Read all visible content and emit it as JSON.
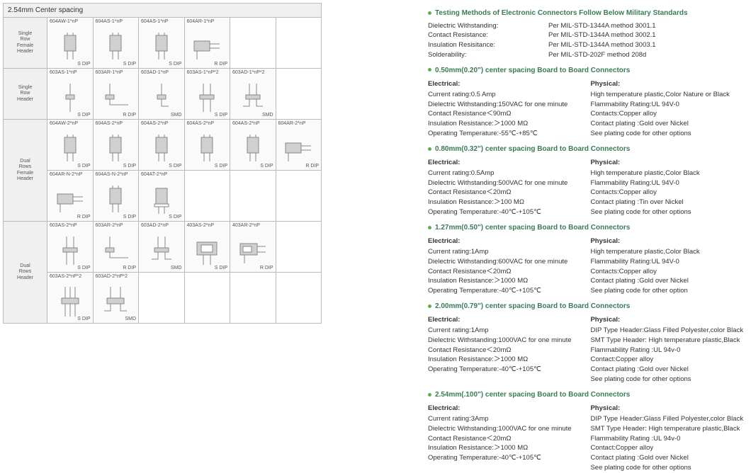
{
  "table": {
    "title": "2.54mm Center spacing",
    "rows": [
      {
        "label": "Single Row Female Header",
        "cells": [
          {
            "part": "604AW-1*nP",
            "pkg": "S DIP",
            "d": "fh"
          },
          {
            "part": "604AS-1*nP",
            "pkg": "S DIP",
            "d": "fh"
          },
          {
            "part": "604AS-1*nP",
            "pkg": "S DIP",
            "d": "fh"
          },
          {
            "part": "604AR-1*nP",
            "pkg": "R DIP",
            "d": "fhr"
          },
          {
            "empty": true
          },
          {
            "empty": true
          }
        ]
      },
      {
        "label": "Single Row Header",
        "cells": [
          {
            "part": "603AS-1*nP",
            "pkg": "S DIP",
            "d": "pin"
          },
          {
            "part": "603AR-1*nP",
            "pkg": "R DIP",
            "d": "pinr"
          },
          {
            "part": "603AD-1*nP",
            "pkg": "SMD",
            "d": "smt"
          },
          {
            "part": "603AS-1*nP*2",
            "pkg": "S DIP",
            "d": "pin2"
          },
          {
            "part": "603AD-1*nP*2",
            "pkg": "SMD",
            "d": "smt2"
          },
          {
            "empty": true
          }
        ]
      },
      {
        "label": "Dual Rows Female Header",
        "cells": [
          {
            "part": "604AW-2*nP",
            "pkg": "S DIP",
            "d": "fh"
          },
          {
            "part": "604AS-2*nP",
            "pkg": "S DIP",
            "d": "fh"
          },
          {
            "part": "604AS-2*nP",
            "pkg": "S DIP",
            "d": "fh"
          },
          {
            "part": "604AS-2*nP",
            "pkg": "S DIP",
            "d": "fh"
          },
          {
            "part": "604AS-2*nP",
            "pkg": "S DIP",
            "d": "fh"
          },
          {
            "part": "604AR-2*nP",
            "pkg": "R DIP",
            "d": "fhr"
          }
        ]
      },
      {
        "label": "",
        "cells": [
          {
            "part": "604AR-N-2*nP",
            "pkg": "R DIP",
            "d": "fhr"
          },
          {
            "part": "604AS-N-2*nP",
            "pkg": "S DIP",
            "d": "fh"
          },
          {
            "part": "604AT-2*nP",
            "pkg": "S DIP",
            "d": "fht"
          },
          {
            "empty": true
          },
          {
            "empty": true
          },
          {
            "empty": true
          }
        ]
      },
      {
        "label": "Dual Rows Header",
        "cells": [
          {
            "part": "603AS-2*nP",
            "pkg": "S DIP",
            "d": "pin2"
          },
          {
            "part": "603AR-2*nP",
            "pkg": "R DIP",
            "d": "pinr"
          },
          {
            "part": "603AD-2*nP",
            "pkg": "SMD",
            "d": "smt2"
          },
          {
            "part": "403AS-2*nP",
            "pkg": "S DIP",
            "d": "pin2b"
          },
          {
            "part": "403AR-2*nP",
            "pkg": "R DIP",
            "d": "pinrb"
          },
          {
            "empty": true
          }
        ]
      },
      {
        "label": "",
        "cells": [
          {
            "part": "603AS-2*nP*2",
            "pkg": "S DIP",
            "d": "pin4"
          },
          {
            "part": "603AD-2*nP*2",
            "pkg": "SMD",
            "d": "smt4"
          },
          {
            "empty": true
          },
          {
            "empty": true
          },
          {
            "empty": true
          },
          {
            "empty": true
          }
        ]
      }
    ]
  },
  "testing": {
    "heading": "Testing Methods of Electronic Connectors Follow Below Military Standards",
    "lines": [
      {
        "lab": "Dielectric Withstanding:",
        "val": "Per MIL-STD-1344A method 3001.1"
      },
      {
        "lab": "Contact  Resistance:",
        "val": "Per MIL-STD-1344A method 3002.1"
      },
      {
        "lab": "Insulation Resisitance:",
        "val": "Per MIL-STD-1344A method 3003.1"
      },
      {
        "lab": "Solderability:",
        "val": "Per MIL-STD-202F method 208d"
      }
    ]
  },
  "sections": [
    {
      "heading": "0.50mm(0.20\") center spacing Board to Board Connectors",
      "electrical": [
        "Current rating:0.5 Amp",
        "Dielectric Withstanding:150VAC for one minute",
        "Contact Resistance＜90mΩ",
        "Insulation Resistance:＞1000 MΩ",
        "Operating  Temperature:-55℃-+85℃"
      ],
      "physical": [
        "High temperature plastic,Color Nature or Black",
        "Flammability Rating:UL 94V-0",
        "Contacts:Copper alloy",
        "Contact plating :Gold over Nickel",
        "See plating code for other options"
      ]
    },
    {
      "heading": "0.80mm(0.32\") center spacing Board to Board Connectors",
      "electrical": [
        "Current rating:0.5Amp",
        "Dielectric Withstanding:500VAC for one minute",
        "Contact Resistance＜20mΩ",
        "Insulation Resistance:＞100 MΩ",
        "Operating  Temperature:-40℃-+105℃"
      ],
      "physical": [
        "High temperature plastic,Color Black",
        "Flammability Rating:UL 94V-0",
        "Contacts:Copper alloy",
        "Contact plating :Tin over Nickel",
        "See plating code for other options"
      ]
    },
    {
      "heading": "1.27mm(0.50\") center spacing Board to Board Connectors",
      "electrical": [
        "Current rating:1Amp",
        "Dielectric Withstanding:600VAC for one minute",
        "Contact Resistance＜20mΩ",
        "Insulation Resistance:＞1000 MΩ",
        "Operating  Temperature:-40℃-+105℃"
      ],
      "physical": [
        "High temperature plastic,Color Black",
        "Flammability Rating:UL 94V-0",
        "Contacts:Copper alloy",
        "Contact plating :Gold  over Nickel",
        "See plating code for other option"
      ]
    },
    {
      "heading": "2.00mm(0.79\") center spacing Board to Board Connectors",
      "electrical": [
        "Current rating:1Amp",
        "Dielectric Withstanding:1000VAC for one minute",
        "Contact Resistance＜20mΩ",
        "Insulation Resistance:＞1000 MΩ",
        "Operating  Temperature:-40℃-+105℃"
      ],
      "physical": [
        "DIP Type Header:Glass Filled Polyester,color Black",
        "SMT Type Header: High temperature plastic,Black",
        "Flammability Rating :UL 94v-0",
        "Contact:Copper alloy",
        "Contact plating :Gold over Nickel",
        "See plating code for other options"
      ]
    },
    {
      "heading": "2.54mm(.100\") center spacing Board to Board Connectors",
      "electrical": [
        "Current rating:3Amp",
        "Dielectric Withstanding:1000VAC for one minute",
        "Contact Resistance＜20mΩ",
        "Insulation Resistance:＞1000 MΩ",
        "Operating  Temperature:-40℃-+105℃"
      ],
      "physical": [
        "DIP Type Header:Glass Filled Polyester,color Black",
        "SMT Type Header: High temperature plastic,Black",
        "Flammability Rating :UL 94v-0",
        "Contact:Copper alloy",
        "Contact plating :Gold over Nickel",
        "See plating code for other options"
      ]
    }
  ],
  "colors": {
    "heading_green": "#3b7a57",
    "bullet_green": "#6aa84f",
    "border_gray": "#bbbbbb",
    "cell_bg": "#fafafa",
    "label_bg": "#f0f0f0",
    "text": "#333333"
  }
}
